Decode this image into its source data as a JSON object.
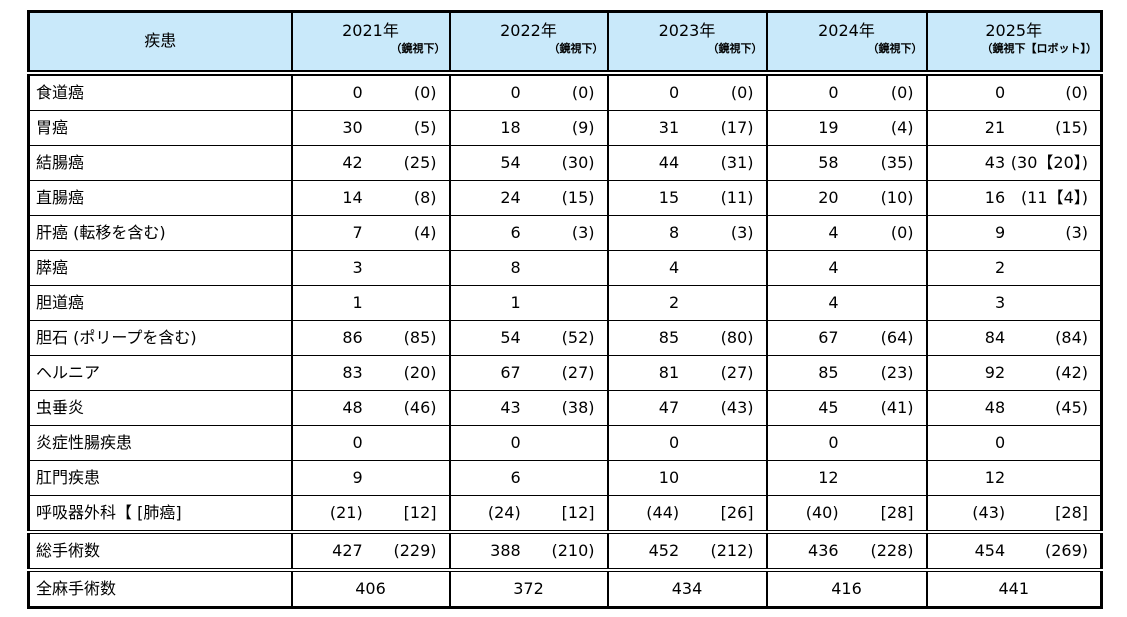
{
  "table": {
    "disease_header": "疾患",
    "year_columns": [
      {
        "year": "2021年",
        "sub": "（鏡視下）"
      },
      {
        "year": "2022年",
        "sub": "（鏡視下）"
      },
      {
        "year": "2023年",
        "sub": "（鏡視下）"
      },
      {
        "year": "2024年",
        "sub": "（鏡視下）"
      },
      {
        "year": "2025年",
        "sub": "（鏡視下【ロボット】）"
      }
    ],
    "rows": [
      {
        "label": "食道癌",
        "cells": [
          [
            "0",
            "(0)"
          ],
          [
            "0",
            "(0)"
          ],
          [
            "0",
            "(0)"
          ],
          [
            "0",
            "(0)"
          ],
          [
            "0",
            "(0)"
          ]
        ]
      },
      {
        "label": "胃癌",
        "cells": [
          [
            "30",
            "(5)"
          ],
          [
            "18",
            "(9)"
          ],
          [
            "31",
            "(17)"
          ],
          [
            "19",
            "(4)"
          ],
          [
            "21",
            "(15)"
          ]
        ]
      },
      {
        "label": "結腸癌",
        "cells": [
          [
            "42",
            "(25)"
          ],
          [
            "54",
            "(30)"
          ],
          [
            "44",
            "(31)"
          ],
          [
            "58",
            "(35)"
          ],
          [
            "43",
            "(30【20】)"
          ]
        ]
      },
      {
        "label": "直腸癌",
        "cells": [
          [
            "14",
            "(8)"
          ],
          [
            "24",
            "(15)"
          ],
          [
            "15",
            "(11)"
          ],
          [
            "20",
            "(10)"
          ],
          [
            "16",
            "(11【4】)"
          ]
        ]
      },
      {
        "label": "肝癌 (転移を含む)",
        "cells": [
          [
            "7",
            "(4)"
          ],
          [
            "6",
            "(3)"
          ],
          [
            "8",
            "(3)"
          ],
          [
            "4",
            "(0)"
          ],
          [
            "9",
            "(3)"
          ]
        ]
      },
      {
        "label": "膵癌",
        "cells": [
          [
            "3",
            ""
          ],
          [
            "8",
            ""
          ],
          [
            "4",
            ""
          ],
          [
            "4",
            ""
          ],
          [
            "2",
            ""
          ]
        ]
      },
      {
        "label": "胆道癌",
        "cells": [
          [
            "1",
            ""
          ],
          [
            "1",
            ""
          ],
          [
            "2",
            ""
          ],
          [
            "4",
            ""
          ],
          [
            "3",
            ""
          ]
        ]
      },
      {
        "label": "胆石 (ポリープを含む)",
        "cells": [
          [
            "86",
            "(85)"
          ],
          [
            "54",
            "(52)"
          ],
          [
            "85",
            "(80)"
          ],
          [
            "67",
            "(64)"
          ],
          [
            "84",
            "(84)"
          ]
        ]
      },
      {
        "label": "ヘルニア",
        "cells": [
          [
            "83",
            "(20)"
          ],
          [
            "67",
            "(27)"
          ],
          [
            "81",
            "(27)"
          ],
          [
            "85",
            "(23)"
          ],
          [
            "92",
            "(42)"
          ]
        ]
      },
      {
        "label": "虫垂炎",
        "cells": [
          [
            "48",
            "(46)"
          ],
          [
            "43",
            "(38)"
          ],
          [
            "47",
            "(43)"
          ],
          [
            "45",
            "(41)"
          ],
          [
            "48",
            "(45)"
          ]
        ]
      },
      {
        "label": "炎症性腸疾患",
        "cells": [
          [
            "0",
            ""
          ],
          [
            "0",
            ""
          ],
          [
            "0",
            ""
          ],
          [
            "0",
            ""
          ],
          [
            "0",
            ""
          ]
        ]
      },
      {
        "label": "肛門疾患",
        "cells": [
          [
            "9",
            ""
          ],
          [
            "6",
            ""
          ],
          [
            "10",
            ""
          ],
          [
            "12",
            ""
          ],
          [
            "12",
            ""
          ]
        ]
      },
      {
        "label": "呼吸器外科【 [肺癌]",
        "cells": [
          [
            "(21)",
            "[12]"
          ],
          [
            "(24)",
            "[12]"
          ],
          [
            "(44)",
            "[26]"
          ],
          [
            "(40)",
            "[28]"
          ],
          [
            "(43)",
            "[28]"
          ]
        ]
      },
      {
        "label": "総手術数",
        "divider": true,
        "cells": [
          [
            "427",
            "(229)"
          ],
          [
            "388",
            "(210)"
          ],
          [
            "452",
            "(212)"
          ],
          [
            "436",
            "(228)"
          ],
          [
            "454",
            "(269)"
          ]
        ]
      },
      {
        "label": "全麻手術数",
        "divider": true,
        "centered": true,
        "cells": [
          [
            "406"
          ],
          [
            "372"
          ],
          [
            "434"
          ],
          [
            "416"
          ],
          [
            "441"
          ]
        ]
      }
    ],
    "header_bg": "#c9e9fa",
    "border_color": "#000000"
  }
}
